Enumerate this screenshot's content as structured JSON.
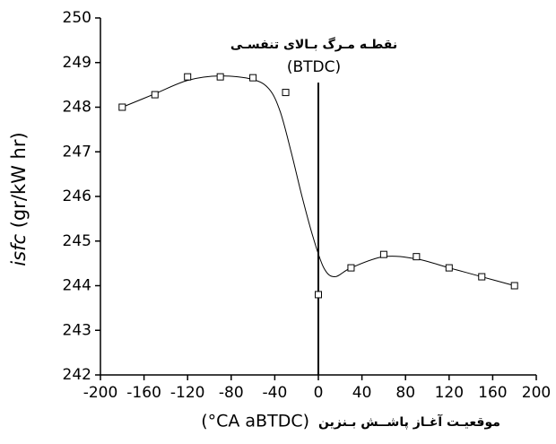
{
  "chart_data": {
    "type": "scatter-fit",
    "annotation": "نقطـه مـرگ بـالای تنفسـی",
    "annotation_sub": "(BTDC)",
    "ylabel_italic": "isfc",
    "ylabel": "(gr/kW hr)",
    "xlabel_en": "(°CA aBTDC)",
    "xlabel_fa": "موقعیـت آغـاز پاشــش بـنزین",
    "xlim": [
      -200,
      200
    ],
    "xticks": [
      -200,
      -160,
      -120,
      -80,
      -40,
      0,
      40,
      80,
      120,
      160,
      200
    ],
    "ylim": [
      242,
      250
    ],
    "yticks": [
      242,
      243,
      244,
      245,
      246,
      247,
      248,
      249,
      250
    ],
    "color": "#000000",
    "points": {
      "x": [
        -180,
        -150,
        -120,
        -90,
        -60,
        -30,
        0,
        30,
        60,
        90,
        120,
        150,
        180
      ],
      "values": [
        248.0,
        248.28,
        248.68,
        248.68,
        248.66,
        248.33,
        243.8,
        244.4,
        244.7,
        244.65,
        244.4,
        244.2,
        244.0
      ]
    },
    "fit": {
      "x": [
        -180,
        -150,
        -120,
        -90,
        -60,
        -45,
        -35,
        -25,
        -15,
        -5,
        5,
        15,
        30,
        60,
        90,
        120,
        150,
        180
      ],
      "values": [
        248.0,
        248.3,
        248.6,
        248.7,
        248.62,
        248.4,
        247.9,
        247.0,
        246.0,
        245.1,
        244.4,
        244.2,
        244.4,
        244.65,
        244.6,
        244.4,
        244.2,
        244.0
      ]
    },
    "reference_line": {
      "x": 0,
      "top": 248.55
    }
  }
}
